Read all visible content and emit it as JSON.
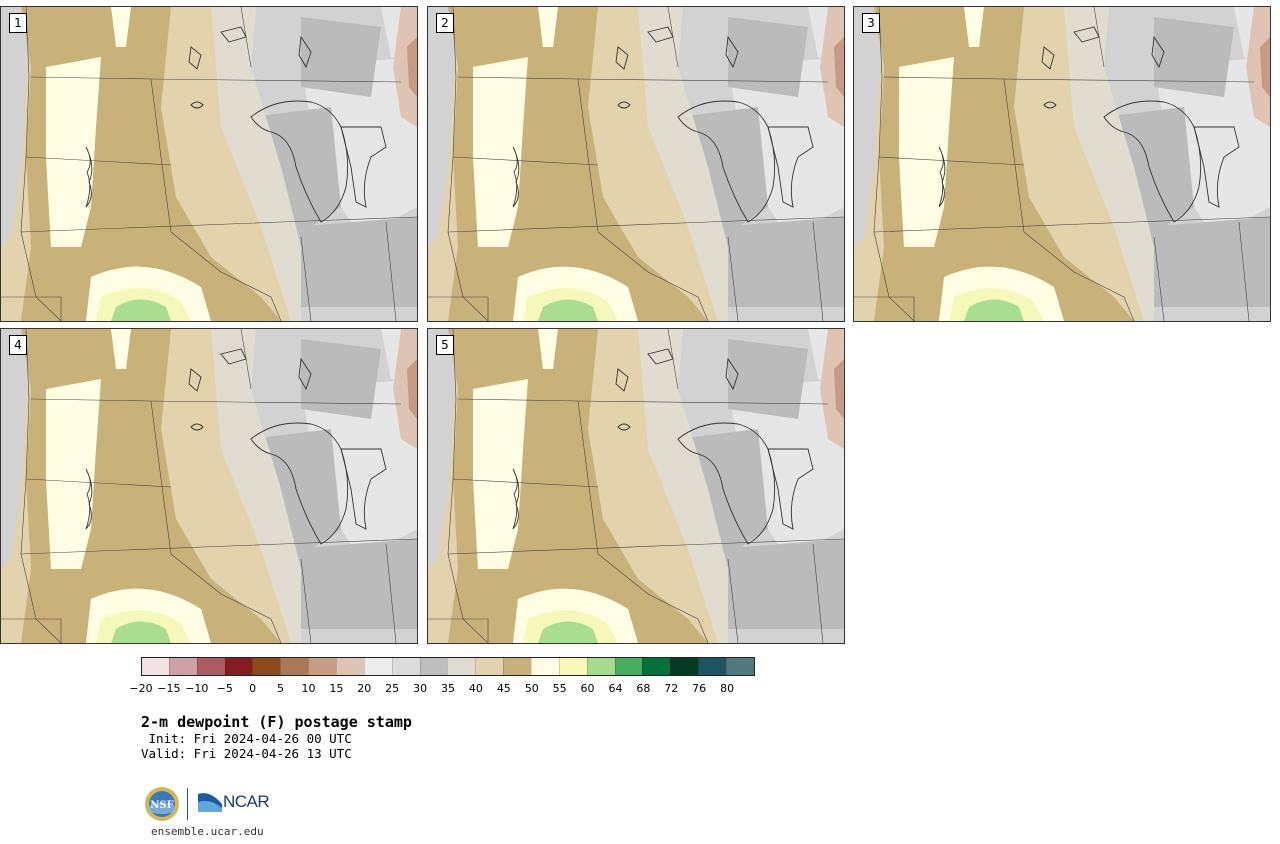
{
  "title": "2-m dewpoint (F) postage stamp",
  "init": " Init: Fri 2024-04-26 00 UTC",
  "valid": "Valid: Fri 2024-04-26 13 UTC",
  "url": "ensemble.ucar.edu",
  "logos": {
    "nsf": "NSF",
    "ncar": "NCAR"
  },
  "panels": [
    {
      "label": "1"
    },
    {
      "label": "2"
    },
    {
      "label": "3"
    },
    {
      "label": "4"
    },
    {
      "label": "5"
    }
  ],
  "colorbar": {
    "tick_labels": [
      "−20",
      "−15",
      "−10",
      "−5",
      "0",
      "5",
      "10",
      "15",
      "20",
      "25",
      "30",
      "35",
      "40",
      "45",
      "50",
      "55",
      "60",
      "64",
      "68",
      "72",
      "76",
      "80"
    ],
    "colors": [
      "#f3e2e4",
      "#cfa0a5",
      "#ab5c60",
      "#851c22",
      "#8a4a1c",
      "#ab7855",
      "#c69c84",
      "#dec4b4",
      "#ececec",
      "#dcdcdc",
      "#bdbdbd",
      "#dedcd0",
      "#e2d3ac",
      "#c7b07a",
      "#fffee4",
      "#f7f8b8",
      "#a7db8c",
      "#47ae5e",
      "#04703a",
      "#073a23",
      "#1e5461",
      "#50797e"
    ]
  },
  "field_colors": {
    "gray_dark": "#bbbbbb",
    "gray_mid": "#d2d2d2",
    "gray_light": "#e6e6e6",
    "beige_pale": "#e0ddd0",
    "tan_light": "#e2d3ac",
    "tan": "#c9b27a",
    "cream": "#fffee4",
    "yellow": "#f5f8b8",
    "green": "#a9dd90",
    "pink": "#dfc4b4",
    "brown_pink": "#c79a85"
  }
}
